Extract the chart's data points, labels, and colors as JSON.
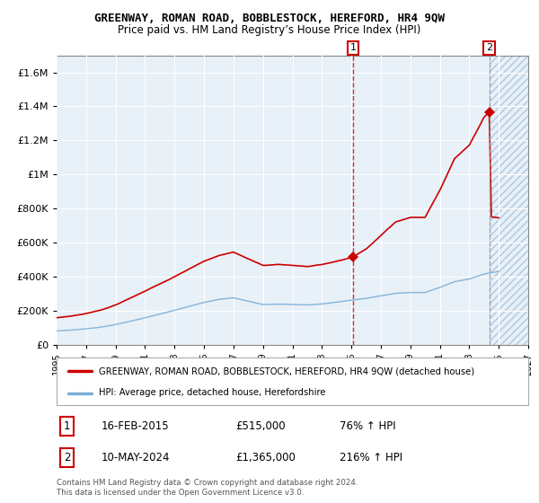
{
  "title": "GREENWAY, ROMAN ROAD, BOBBLESTOCK, HEREFORD, HR4 9QW",
  "subtitle": "Price paid vs. HM Land Registry’s House Price Index (HPI)",
  "legend_line1": "GREENWAY, ROMAN ROAD, BOBBLESTOCK, HEREFORD, HR4 9QW (detached house)",
  "legend_line2": "HPI: Average price, detached house, Herefordshire",
  "annotation1_date": "16-FEB-2015",
  "annotation1_price": "£515,000",
  "annotation1_hpi": "76% ↑ HPI",
  "annotation2_date": "10-MAY-2024",
  "annotation2_price": "£1,365,000",
  "annotation2_hpi": "216% ↑ HPI",
  "footnote": "Contains HM Land Registry data © Crown copyright and database right 2024.\nThis data is licensed under the Open Government Licence v3.0.",
  "red_color": "#cc0000",
  "blue_color": "#7aaed6",
  "bg_color": "#e8f0f8",
  "ylim": [
    0,
    1700000
  ],
  "yticks": [
    0,
    200000,
    400000,
    600000,
    800000,
    1000000,
    1200000,
    1400000,
    1600000
  ],
  "year_start": 1995,
  "year_end": 2027,
  "sale1_year": 2015.12,
  "sale1_value": 515000,
  "sale2_year": 2024.36,
  "sale2_value": 1365000
}
